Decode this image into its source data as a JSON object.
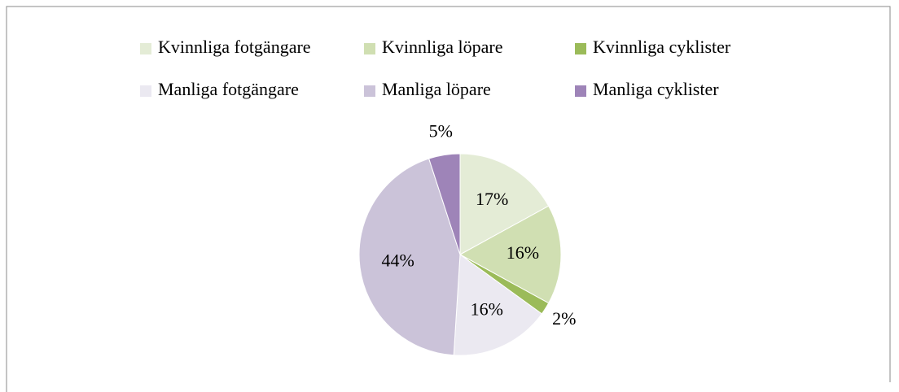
{
  "chart_data": {
    "type": "pie",
    "categories": [
      "Kvinnliga fotgängare",
      "Kvinnliga löpare",
      "Kvinnliga cyklister",
      "Manliga fotgängare",
      "Manliga löpare",
      "Manliga cyklister"
    ],
    "values": [
      17,
      16,
      2,
      16,
      44,
      5
    ],
    "value_labels": [
      "17%",
      "16%",
      "2%",
      "16%",
      "44%",
      "5%"
    ],
    "colors": [
      "#e4ecd6",
      "#d0dfb2",
      "#9bbb59",
      "#ebe9f1",
      "#cbc3d9",
      "#9e84b8"
    ],
    "legend": "top"
  }
}
